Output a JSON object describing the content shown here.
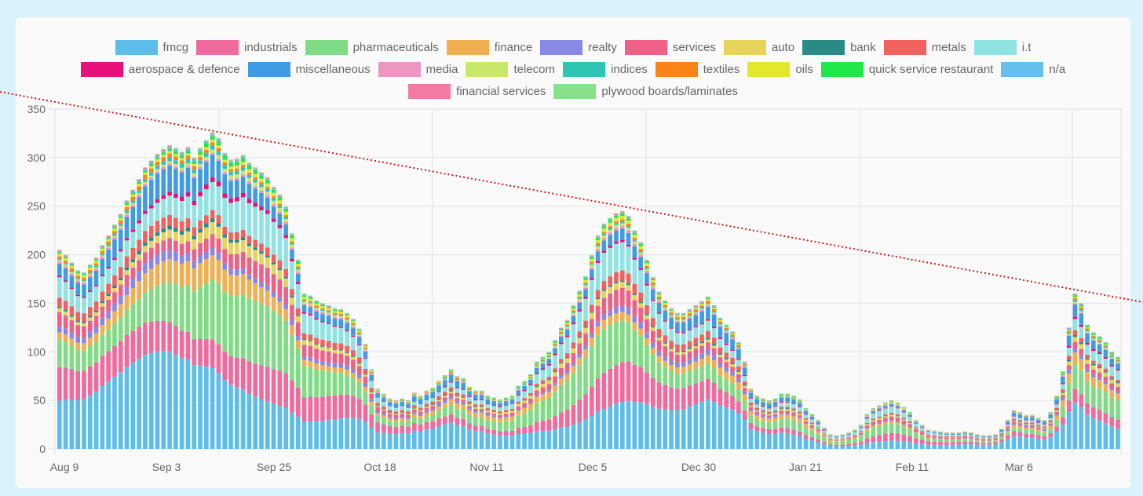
{
  "chart_data": {
    "type": "bar",
    "stacked": true,
    "title": "",
    "xlabel": "",
    "ylabel": "",
    "ylim": [
      0,
      350
    ],
    "yticks": [
      "0",
      "50",
      "100",
      "150",
      "200",
      "250",
      "300",
      "350"
    ],
    "xtick_labels": [
      "Aug 9",
      "Sep 3",
      "Sep 25",
      "Oct 18",
      "Nov 11",
      "Dec 5",
      "Dec 30",
      "Jan 21",
      "Feb 11",
      "Mar 6"
    ],
    "grid": true,
    "legend_position": "top",
    "series": [
      {
        "name": "fmcg",
        "color": "#5bbde8"
      },
      {
        "name": "industrials",
        "color": "#f06a9e"
      },
      {
        "name": "pharmaceuticals",
        "color": "#7fdc84"
      },
      {
        "name": "finance",
        "color": "#f0b04f"
      },
      {
        "name": "realty",
        "color": "#8888e6"
      },
      {
        "name": "services",
        "color": "#ef5f86"
      },
      {
        "name": "auto",
        "color": "#e6d35a"
      },
      {
        "name": "bank",
        "color": "#2a8b85"
      },
      {
        "name": "metals",
        "color": "#f2615c"
      },
      {
        "name": "i.t",
        "color": "#8fe3e3"
      },
      {
        "name": "aerospace & defence",
        "color": "#e8107a"
      },
      {
        "name": "miscellaneous",
        "color": "#3f9be3"
      },
      {
        "name": "media",
        "color": "#ec97c2"
      },
      {
        "name": "telecom",
        "color": "#c9e86b"
      },
      {
        "name": "indices",
        "color": "#2ec6b2"
      },
      {
        "name": "textiles",
        "color": "#fb8417"
      },
      {
        "name": "oils",
        "color": "#e2e82a"
      },
      {
        "name": "quick service restaurant",
        "color": "#1ee84a"
      },
      {
        "name": "n/a",
        "color": "#65c0ee"
      },
      {
        "name": "financial services",
        "color": "#f27aa3"
      },
      {
        "name": "plywood boards/laminates",
        "color": "#88e08a"
      }
    ],
    "totals": [
      205,
      200,
      192,
      184,
      182,
      190,
      197,
      210,
      220,
      231,
      242,
      256,
      267,
      278,
      290,
      297,
      304,
      309,
      313,
      310,
      306,
      311,
      300,
      310,
      318,
      326,
      320,
      305,
      298,
      299,
      303,
      295,
      290,
      285,
      280,
      270,
      262,
      250,
      222,
      195,
      160,
      158,
      153,
      150,
      148,
      145,
      144,
      140,
      134,
      124,
      108,
      82,
      62,
      57,
      52,
      50,
      52,
      50,
      58,
      55,
      60,
      63,
      70,
      76,
      82,
      75,
      73,
      64,
      60,
      60,
      55,
      53,
      51,
      53,
      55,
      65,
      70,
      77,
      90,
      95,
      100,
      112,
      125,
      133,
      148,
      163,
      178,
      200,
      220,
      232,
      238,
      243,
      245,
      240,
      225,
      213,
      195,
      177,
      162,
      153,
      145,
      140,
      140,
      144,
      148,
      152,
      157,
      148,
      135,
      128,
      121,
      110,
      90,
      62,
      55,
      52,
      50,
      52,
      57,
      57,
      55,
      51,
      42,
      36,
      30,
      22,
      15,
      14,
      15,
      17,
      20,
      25,
      36,
      42,
      45,
      48,
      50,
      48,
      43,
      38,
      30,
      25,
      20,
      19,
      18,
      17,
      17,
      17,
      18,
      17,
      15,
      14,
      14,
      15,
      21,
      30,
      40,
      38,
      35,
      35,
      32,
      30,
      38,
      55,
      80,
      125,
      160,
      150,
      128,
      120,
      116,
      110,
      100,
      95
    ]
  },
  "trendline": {
    "style": "dotted",
    "color": "#cc1a1a"
  }
}
